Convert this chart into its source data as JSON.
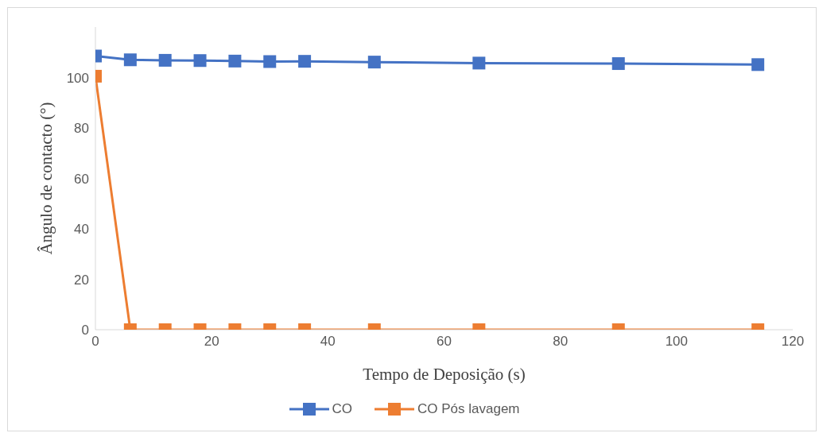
{
  "chart_data": {
    "type": "line",
    "xlabel": "Tempo de Deposição (s)",
    "ylabel": "Ângulo de contacto (°)",
    "x": [
      0,
      6,
      12,
      18,
      24,
      30,
      36,
      48,
      66,
      90,
      114
    ],
    "series": [
      {
        "name": "CO",
        "color": "#4472c4",
        "values": [
          108.5,
          107,
          106.8,
          106.7,
          106.5,
          106.3,
          106.4,
          106.1,
          105.7,
          105.5,
          105.1
        ]
      },
      {
        "name": "CO Pós lavagem",
        "color": "#ed7d31",
        "values": [
          100.5,
          0,
          0,
          0,
          0,
          0,
          0,
          0,
          0,
          0,
          0
        ]
      }
    ],
    "xlim": [
      0,
      120
    ],
    "xticks": [
      0,
      20,
      40,
      60,
      80,
      100,
      120
    ],
    "ylim": [
      0,
      120
    ],
    "yticks": [
      0,
      20,
      40,
      60,
      80,
      100
    ],
    "grid": false,
    "legend": "bottom",
    "marker": "square",
    "line_style": "solid"
  }
}
